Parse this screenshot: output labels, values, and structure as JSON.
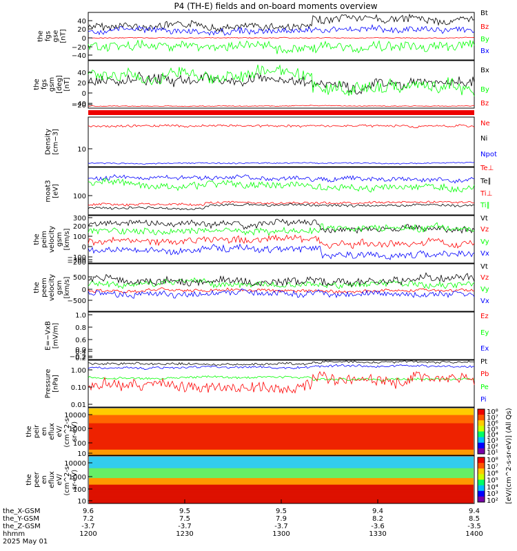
{
  "title": "P4 (TH-E) fields and on-board moments overview",
  "colors": {
    "black": "#000000",
    "red": "#ff0000",
    "green": "#00ff00",
    "blue": "#0000ff"
  },
  "chart_data": [
    {
      "id": "fgs_gse",
      "type": "line",
      "ylabel": [
        "the",
        "fgs",
        "gse",
        "[nT]"
      ],
      "ylim": [
        -50,
        55
      ],
      "yticks": [
        "40",
        "20",
        "0",
        "−20",
        "−40"
      ],
      "series": [
        {
          "name": "Bt",
          "color": "black"
        },
        {
          "name": "Bz",
          "color": "red"
        },
        {
          "name": "By",
          "color": "green"
        },
        {
          "name": "Bx",
          "color": "blue"
        }
      ]
    },
    {
      "id": "fgs_gsm",
      "type": "line",
      "ylabel": [
        "the",
        "fgs",
        "gsm",
        "[deg]",
        "[nT]"
      ],
      "ylim": [
        -50,
        55
      ],
      "yticks": [
        "40",
        "20",
        "0",
        "−20",
        "−40"
      ],
      "series": [
        {
          "name": "Bx",
          "color": "black"
        },
        {
          "name": "By",
          "color": "green"
        },
        {
          "name": "Bz",
          "color": "red"
        }
      ]
    },
    {
      "id": "density",
      "type": "line",
      "ylabel": [
        "Density",
        "[cm−3]"
      ],
      "ylim": [
        0,
        1
      ],
      "yticks": [
        "10"
      ],
      "series": [
        {
          "name": "Ne",
          "color": "red"
        },
        {
          "name": "Ni",
          "color": "black"
        },
        {
          "name": "Npot",
          "color": "blue"
        }
      ]
    },
    {
      "id": "temperature",
      "type": "line",
      "ylabel": [
        "moat3",
        "[eV]"
      ],
      "ylim": [
        0,
        1
      ],
      "yticks": [
        "100"
      ],
      "series": [
        {
          "name": "Te⊥",
          "color": "red"
        },
        {
          "name": "Te∥",
          "color": "black"
        },
        {
          "name": "Ti⊥",
          "color": "red"
        },
        {
          "name": "Ti∥",
          "color": "green"
        }
      ]
    },
    {
      "id": "peim_velocity",
      "type": "line",
      "ylabel": [
        "the",
        "peim",
        "velocity",
        "gsm",
        "[km/s]"
      ],
      "ylim": [
        -300,
        300
      ],
      "yticks": [
        "300",
        "200",
        "100",
        "0",
        "−100",
        "−200",
        "−300"
      ],
      "series": [
        {
          "name": "Vt",
          "color": "black"
        },
        {
          "name": "Vz",
          "color": "red"
        },
        {
          "name": "Vy",
          "color": "green"
        },
        {
          "name": "Vx",
          "color": "blue"
        }
      ]
    },
    {
      "id": "peem_velocity",
      "type": "line",
      "ylabel": [
        "the",
        "peem",
        "velocity",
        "gsm",
        "[km/s]"
      ],
      "ylim": [
        -1000,
        1000
      ],
      "yticks": [
        "500",
        "0",
        "−500"
      ],
      "series": [
        {
          "name": "Vt",
          "color": "black"
        },
        {
          "name": "Vz",
          "color": "red"
        },
        {
          "name": "Vy",
          "color": "green"
        },
        {
          "name": "Vx",
          "color": "blue"
        }
      ]
    },
    {
      "id": "efield",
      "type": "line",
      "ylabel": [
        "E=−VxB",
        "[mV/m]"
      ],
      "ylim": [
        -0.2,
        1.0
      ],
      "yticks": [
        "1.0",
        "0.8",
        "0.6",
        "0.4",
        "0.2",
        "0.0",
        "−0.2"
      ],
      "series": [
        {
          "name": "Ez",
          "color": "red"
        },
        {
          "name": "Ey",
          "color": "green"
        },
        {
          "name": "Ex",
          "color": "blue"
        }
      ]
    },
    {
      "id": "pressure",
      "type": "line",
      "ylabel": [
        "Pressure",
        "[nPa]"
      ],
      "ylim": [
        0.01,
        2.0
      ],
      "yticks": [
        "1.00",
        "0.10",
        "0.01"
      ],
      "series": [
        {
          "name": "Pt",
          "color": "black"
        },
        {
          "name": "Pb",
          "color": "red"
        },
        {
          "name": "Pe",
          "color": "green"
        },
        {
          "name": "Pi",
          "color": "blue"
        }
      ]
    },
    {
      "id": "peir_eflux",
      "type": "heatmap",
      "ylabel": [
        "the",
        "peir",
        "en",
        "eflux",
        "eV/",
        "(cm^2-s-",
        "sr-eV)"
      ],
      "yticks": [
        "10000",
        "1000",
        "100",
        "10"
      ],
      "colorbar_ticks": [
        "10⁸",
        "10⁷",
        "10⁶",
        "10⁵",
        "10⁴",
        "10³",
        "10²",
        "10¹"
      ]
    },
    {
      "id": "peer_eflux",
      "type": "heatmap",
      "ylabel": [
        "the",
        "peer",
        "en",
        "eflux",
        "eV/",
        "(cm^2-s-",
        "sr-eV)"
      ],
      "yticks": [
        "10000",
        "1000",
        "100",
        "10"
      ],
      "colorbar_ticks": [
        "10⁸",
        "10⁷",
        "10⁶",
        "10⁵",
        "10⁴",
        "10³",
        "10²"
      ]
    }
  ],
  "colorbar_label": "[eV/(cm^2-s-sr-eV)] (All Qs)",
  "xaxis": {
    "rows": [
      {
        "label": "the_X-GSM",
        "values": [
          "9.6",
          "9.5",
          "9.5",
          "9.4",
          "9.4"
        ]
      },
      {
        "label": "the_Y-GSM",
        "values": [
          "7.2",
          "7.5",
          "7.9",
          "8.2",
          "8.5"
        ]
      },
      {
        "label": "the_Z-GSM",
        "values": [
          "-3.7",
          "-3.7",
          "-3.7",
          "-3.6",
          "-3.5"
        ]
      },
      {
        "label": "hhmm",
        "values": [
          "1200",
          "1230",
          "1300",
          "1330",
          "1400"
        ]
      }
    ],
    "date": "2025 May 01"
  }
}
